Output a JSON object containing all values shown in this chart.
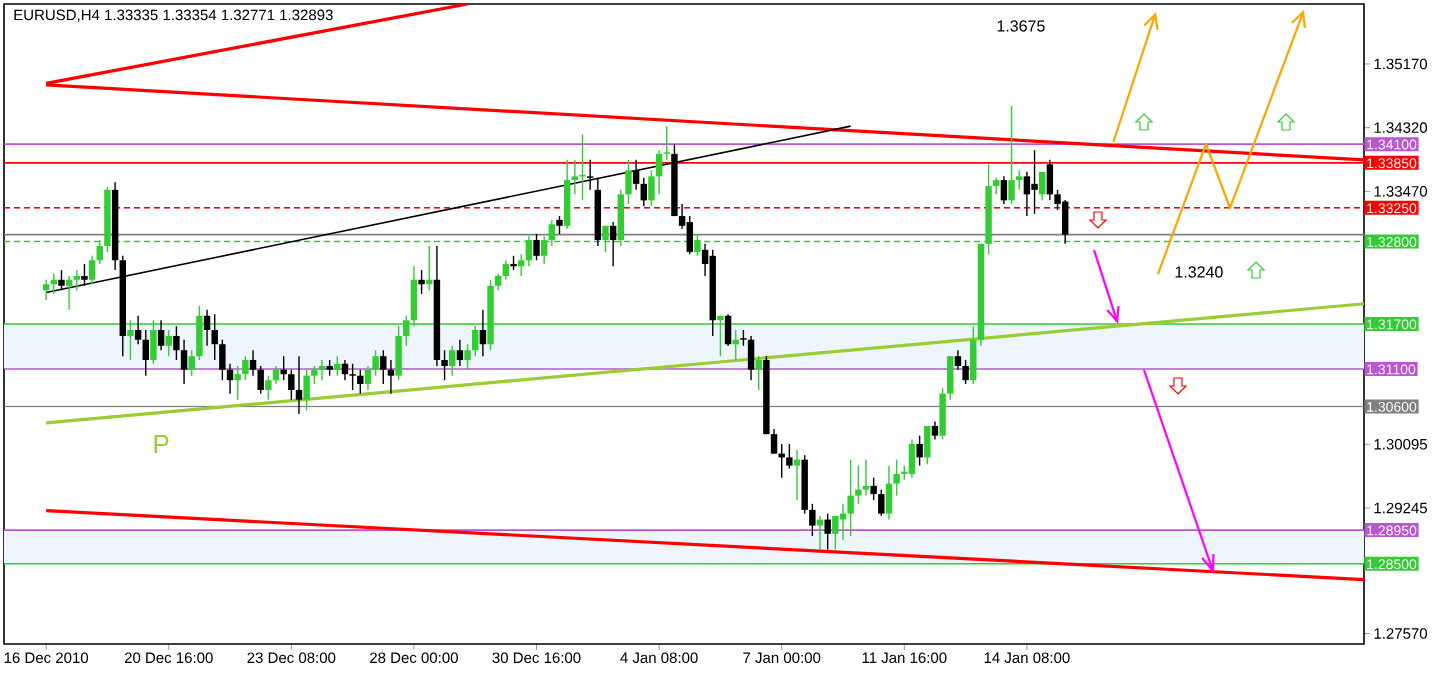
{
  "chart_data": {
    "type": "candlestick",
    "title": "EURUSD,H4  1.33335 1.33354 1.32771 1.32893",
    "categories": [
      "16 Dec 2010",
      null,
      null,
      null,
      null,
      null,
      null,
      null,
      null,
      null,
      null,
      null,
      null,
      null,
      null,
      null,
      "20 Dec 16:00",
      null,
      null,
      null,
      null,
      null,
      null,
      null,
      null,
      null,
      null,
      null,
      null,
      null,
      null,
      null,
      "23 Dec 08:00",
      null,
      null,
      null,
      null,
      null,
      null,
      null,
      null,
      null,
      null,
      null,
      null,
      null,
      null,
      null,
      "28 Dec 00:00",
      null,
      null,
      null,
      null,
      null,
      null,
      null,
      null,
      null,
      null,
      null,
      null,
      null,
      null,
      null,
      "30 Dec 16:00",
      null,
      null,
      null,
      null,
      null,
      null,
      null,
      null,
      null,
      null,
      null,
      null,
      null,
      null,
      null,
      "4 Jan 08:00",
      null,
      null,
      null,
      null,
      null,
      null,
      null,
      null,
      null,
      null,
      null,
      null,
      null,
      null,
      null,
      "7 Jan 00:00",
      null,
      null,
      null,
      null,
      null,
      null,
      null,
      null,
      null,
      null,
      null,
      null,
      null,
      null,
      null,
      "11 Jan 16:00",
      null,
      null,
      null,
      null,
      null,
      null,
      null,
      null,
      null,
      null,
      null,
      null,
      null,
      null,
      null,
      "14 Jan 08:00",
      null,
      null,
      null,
      null,
      null,
      null,
      null,
      null,
      null,
      null,
      null,
      null,
      null,
      null,
      null,
      null,
      null,
      null,
      null,
      null,
      null,
      null,
      null,
      null,
      null,
      null,
      null,
      null,
      null,
      null,
      null,
      null,
      null,
      null,
      null,
      null,
      null,
      null,
      null,
      null,
      null,
      null,
      null,
      null
    ],
    "ohlc": [
      [
        1.3215,
        1.3229,
        1.3202,
        1.3223
      ],
      [
        1.3223,
        1.3237,
        1.321,
        1.3229
      ],
      [
        1.3229,
        1.3242,
        1.3215,
        1.3221
      ],
      [
        1.3221,
        1.3234,
        1.3189,
        1.3229
      ],
      [
        1.3229,
        1.3242,
        1.3215,
        1.3234
      ],
      [
        1.3234,
        1.325,
        1.3221,
        1.3229
      ],
      [
        1.3229,
        1.3261,
        1.3223,
        1.3255
      ],
      [
        1.3255,
        1.3282,
        1.325,
        1.3274
      ],
      [
        1.3274,
        1.3353,
        1.3266,
        1.3349
      ],
      [
        1.3349,
        1.3359,
        1.3242,
        1.3255
      ],
      [
        1.3255,
        1.3261,
        1.3127,
        1.3154
      ],
      [
        1.3154,
        1.3175,
        1.3122,
        1.3162
      ],
      [
        1.3162,
        1.3181,
        1.3143,
        1.3149
      ],
      [
        1.3149,
        1.3162,
        1.3101,
        1.3122
      ],
      [
        1.3122,
        1.3175,
        1.3117,
        1.3162
      ],
      [
        1.3162,
        1.3175,
        1.3135,
        1.3141
      ],
      [
        1.3141,
        1.3162,
        1.3127,
        1.3154
      ],
      [
        1.3154,
        1.3167,
        1.3122,
        1.3135
      ],
      [
        1.3135,
        1.3149,
        1.309,
        1.3109
      ],
      [
        1.3109,
        1.3135,
        1.3101,
        1.3127
      ],
      [
        1.3127,
        1.3194,
        1.3122,
        1.3181
      ],
      [
        1.3181,
        1.3189,
        1.3141,
        1.3162
      ],
      [
        1.3162,
        1.3183,
        1.3122,
        1.3143
      ],
      [
        1.3143,
        1.3149,
        1.3095,
        1.3109
      ],
      [
        1.3109,
        1.3117,
        1.3077,
        1.3095
      ],
      [
        1.3095,
        1.3114,
        1.3069,
        1.3103
      ],
      [
        1.3103,
        1.3127,
        1.3095,
        1.3122
      ],
      [
        1.3122,
        1.3135,
        1.3101,
        1.3109
      ],
      [
        1.3109,
        1.3114,
        1.3077,
        1.3082
      ],
      [
        1.3082,
        1.3101,
        1.3069,
        1.3095
      ],
      [
        1.3095,
        1.3114,
        1.309,
        1.3109
      ],
      [
        1.3109,
        1.3127,
        1.3095,
        1.3103
      ],
      [
        1.3103,
        1.3109,
        1.3069,
        1.3082
      ],
      [
        1.3082,
        1.3127,
        1.305,
        1.3069
      ],
      [
        1.3069,
        1.3109,
        1.3055,
        1.3101
      ],
      [
        1.3101,
        1.3114,
        1.309,
        1.3109
      ],
      [
        1.3109,
        1.3122,
        1.3095,
        1.3114
      ],
      [
        1.3114,
        1.3122,
        1.3101,
        1.3109
      ],
      [
        1.3109,
        1.3127,
        1.3101,
        1.3117
      ],
      [
        1.3117,
        1.3122,
        1.3095,
        1.3103
      ],
      [
        1.3103,
        1.3117,
        1.3082,
        1.3101
      ],
      [
        1.3101,
        1.3109,
        1.3077,
        1.309
      ],
      [
        1.309,
        1.3114,
        1.3082,
        1.3109
      ],
      [
        1.3109,
        1.3135,
        1.3101,
        1.3127
      ],
      [
        1.3127,
        1.3135,
        1.309,
        1.3109
      ],
      [
        1.3109,
        1.3122,
        1.3077,
        1.3101
      ],
      [
        1.3101,
        1.3167,
        1.3095,
        1.3154
      ],
      [
        1.3154,
        1.3181,
        1.3141,
        1.3175
      ],
      [
        1.3175,
        1.3247,
        1.3167,
        1.3229
      ],
      [
        1.3229,
        1.3242,
        1.321,
        1.3223
      ],
      [
        1.3223,
        1.3274,
        1.3215,
        1.3229
      ],
      [
        1.3229,
        1.3274,
        1.3114,
        1.3122
      ],
      [
        1.3122,
        1.3135,
        1.3095,
        1.3114
      ],
      [
        1.3114,
        1.3141,
        1.3101,
        1.3135
      ],
      [
        1.3135,
        1.3149,
        1.3114,
        1.3122
      ],
      [
        1.3122,
        1.3143,
        1.3109,
        1.3135
      ],
      [
        1.3135,
        1.3167,
        1.3127,
        1.3162
      ],
      [
        1.3162,
        1.3189,
        1.3127,
        1.3143
      ],
      [
        1.3143,
        1.3229,
        1.3135,
        1.3221
      ],
      [
        1.3221,
        1.3237,
        1.3215,
        1.3234
      ],
      [
        1.3234,
        1.3255,
        1.3229,
        1.325
      ],
      [
        1.325,
        1.3261,
        1.3242,
        1.3247
      ],
      [
        1.3247,
        1.3263,
        1.3234,
        1.3255
      ],
      [
        1.3255,
        1.3287,
        1.3247,
        1.3282
      ],
      [
        1.3282,
        1.329,
        1.3255,
        1.3261
      ],
      [
        1.3261,
        1.3287,
        1.325,
        1.3282
      ],
      [
        1.3282,
        1.3309,
        1.3274,
        1.3303
      ],
      [
        1.3309,
        1.3314,
        1.329,
        1.3301
      ],
      [
        1.3301,
        1.3389,
        1.3297,
        1.3362
      ],
      [
        1.3362,
        1.3389,
        1.3343,
        1.3367
      ],
      [
        1.3367,
        1.3423,
        1.3335,
        1.3369
      ],
      [
        1.3367,
        1.3389,
        1.3349,
        1.3365
      ],
      [
        1.3349,
        1.3365,
        1.3274,
        1.3282
      ],
      [
        1.3282,
        1.3301,
        1.3266,
        1.3301
      ],
      [
        1.3301,
        1.3306,
        1.3247,
        1.3282
      ],
      [
        1.3282,
        1.3349,
        1.3274,
        1.3343
      ],
      [
        1.3343,
        1.3389,
        1.333,
        1.3375
      ],
      [
        1.3375,
        1.3389,
        1.3349,
        1.3357
      ],
      [
        1.3357,
        1.3365,
        1.3327,
        1.3335
      ],
      [
        1.3335,
        1.3375,
        1.3327,
        1.3367
      ],
      [
        1.3367,
        1.3402,
        1.3343,
        1.3397
      ],
      [
        1.3397,
        1.3434,
        1.3389,
        1.3399
      ],
      [
        1.3397,
        1.341,
        1.3314,
        1.3314
      ],
      [
        1.3314,
        1.333,
        1.3297,
        1.3301
      ],
      [
        1.3306,
        1.3314,
        1.3263,
        1.3266
      ],
      [
        1.3266,
        1.329,
        1.3261,
        1.3282
      ],
      [
        1.3269,
        1.3277,
        1.3234,
        1.325
      ],
      [
        1.3261,
        1.3269,
        1.3154,
        1.3175
      ],
      [
        1.3175,
        1.3181,
        1.3127,
        1.3181
      ],
      [
        1.3181,
        1.3183,
        1.3141,
        1.3143
      ],
      [
        1.3143,
        1.3162,
        1.3122,
        1.3149
      ],
      [
        1.3151,
        1.3162,
        1.3141,
        1.3149
      ],
      [
        1.3149,
        1.3154,
        1.3095,
        1.3109
      ],
      [
        1.3109,
        1.3127,
        1.3082,
        1.3122
      ],
      [
        1.3122,
        1.3127,
        1.3023,
        1.3023
      ],
      [
        1.3023,
        1.303,
        1.2997,
        1.2997
      ],
      [
        1.2997,
        1.301,
        1.2965,
        1.2992
      ],
      [
        1.2992,
        1.301,
        1.2977,
        1.2981
      ],
      [
        1.2981,
        1.3002,
        1.2935,
        1.2989
      ],
      [
        1.2989,
        1.2995,
        1.2917,
        1.2922
      ],
      [
        1.2922,
        1.293,
        1.2887,
        1.2901
      ],
      [
        1.2901,
        1.2914,
        1.2869,
        1.2909
      ],
      [
        1.2909,
        1.2917,
        1.2869,
        1.289
      ],
      [
        1.289,
        1.2914,
        1.2869,
        1.2914
      ],
      [
        1.2909,
        1.293,
        1.2882,
        1.2917
      ],
      [
        1.2917,
        1.2989,
        1.2887,
        1.2941
      ],
      [
        1.2941,
        1.2981,
        1.293,
        1.2949
      ],
      [
        1.2949,
        1.2989,
        1.2941,
        1.2954
      ],
      [
        1.2954,
        1.2965,
        1.2935,
        1.2943
      ],
      [
        1.2943,
        1.2949,
        1.2914,
        1.2917
      ],
      [
        1.2917,
        1.2981,
        1.2909,
        1.2957
      ],
      [
        1.2957,
        1.2989,
        1.2941,
        1.297
      ],
      [
        1.297,
        1.2981,
        1.2962,
        1.2973
      ],
      [
        1.297,
        1.3016,
        1.2965,
        1.301
      ],
      [
        1.301,
        1.3021,
        1.2981,
        1.2992
      ],
      [
        1.2992,
        1.3034,
        1.2983,
        1.3034
      ],
      [
        1.3034,
        1.304,
        1.3016,
        1.3021
      ],
      [
        1.3021,
        1.3085,
        1.3016,
        1.3077
      ],
      [
        1.3077,
        1.3127,
        1.3069,
        1.3127
      ],
      [
        1.3127,
        1.3135,
        1.3109,
        1.3114
      ],
      [
        1.3114,
        1.3122,
        1.309,
        1.3095
      ],
      [
        1.3095,
        1.3167,
        1.309,
        1.3149
      ],
      [
        1.3149,
        1.3277,
        1.3141,
        1.3277
      ],
      [
        1.3277,
        1.3383,
        1.3263,
        1.3354
      ],
      [
        1.3354,
        1.3365,
        1.3343,
        1.3362
      ],
      [
        1.3362,
        1.3367,
        1.333,
        1.3335
      ],
      [
        1.3335,
        1.3461,
        1.333,
        1.3362
      ],
      [
        1.3362,
        1.3375,
        1.3349,
        1.3367
      ],
      [
        1.3367,
        1.3373,
        1.3314,
        1.3343
      ],
      [
        1.3357,
        1.3402,
        1.3317,
        1.3349
      ],
      [
        1.3343,
        1.3373,
        1.3335,
        1.3373
      ],
      [
        1.3383,
        1.3389,
        1.3335,
        1.3343
      ],
      [
        1.3343,
        1.3349,
        1.3322,
        1.333
      ],
      [
        1.33335,
        1.33354,
        1.32771,
        1.32893
      ],
      null,
      null,
      null,
      null,
      null,
      null,
      null,
      null,
      null,
      null,
      null,
      null,
      null,
      null,
      null,
      null,
      null,
      null,
      null,
      null,
      null,
      null,
      null,
      null,
      null,
      null,
      null,
      null,
      null,
      null,
      null,
      null,
      null,
      null,
      null,
      null,
      null,
      null,
      null
    ],
    "series": [
      {
        "type": "line",
        "values": [
          1.3491,
          null,
          null,
          null,
          null,
          null,
          null,
          null,
          null,
          null,
          null,
          null,
          null,
          null,
          null,
          null,
          null,
          null,
          null,
          null,
          null,
          null,
          null,
          null,
          null,
          null,
          null,
          null,
          null,
          null,
          null,
          null,
          null,
          null,
          null,
          null,
          null,
          null,
          null,
          null,
          null,
          null,
          null,
          null,
          null,
          null,
          null,
          null,
          null,
          null,
          null,
          null,
          null,
          null,
          null,
          1.3597,
          null,
          null,
          null,
          null,
          null,
          null,
          null,
          null,
          null,
          null,
          null,
          null,
          null,
          null,
          null,
          null,
          null,
          null,
          null,
          null,
          null,
          null,
          null,
          null,
          null,
          null,
          null,
          null,
          null,
          null,
          null,
          null,
          null,
          null,
          null,
          null,
          null,
          null,
          null,
          null,
          null,
          null,
          null,
          null,
          null,
          null,
          null,
          null,
          null,
          null,
          null,
          null,
          null,
          null,
          null,
          null,
          null,
          null,
          null,
          null,
          null,
          null,
          null,
          null,
          null,
          null,
          null,
          null,
          null,
          null,
          null,
          null,
          null,
          null,
          null,
          null,
          null,
          null,
          null,
          null,
          null,
          null,
          null,
          null,
          null,
          null,
          null,
          null,
          null,
          null,
          null,
          null,
          null,
          null,
          null,
          null,
          null,
          null,
          null,
          null,
          null,
          null,
          null,
          null,
          null,
          null,
          null,
          null,
          null,
          null,
          null,
          null,
          null,
          null,
          null,
          null,
          null
        ],
        "color": "#ff0000"
      },
      {
        "type": "line",
        "values": [
          1.3489,
          null,
          null,
          null,
          null,
          null,
          null,
          null,
          null,
          null,
          null,
          null,
          null,
          null,
          null,
          null,
          null,
          null,
          null,
          null,
          null,
          null,
          null,
          null,
          null,
          null,
          null,
          null,
          null,
          null,
          null,
          null,
          null,
          null,
          null,
          null,
          null,
          null,
          null,
          null,
          null,
          null,
          null,
          null,
          null,
          null,
          null,
          null,
          null,
          null,
          null,
          null,
          null,
          null,
          null,
          null,
          null,
          null,
          null,
          null,
          null,
          null,
          null,
          null,
          null,
          null,
          null,
          null,
          null,
          null,
          null,
          null,
          null,
          null,
          null,
          null,
          null,
          null,
          null,
          null,
          null,
          null,
          null,
          null,
          null,
          null,
          null,
          null,
          null,
          null,
          null,
          null,
          null,
          null,
          null,
          null,
          null,
          null,
          null,
          null,
          null,
          null,
          null,
          null,
          null,
          null,
          null,
          null,
          null,
          null,
          null,
          null,
          null,
          null,
          null,
          null,
          null,
          null,
          null,
          null,
          null,
          null,
          null,
          null,
          null,
          null,
          null,
          null,
          null,
          null,
          null,
          null,
          null,
          null,
          null,
          null,
          null,
          null,
          null,
          null,
          null,
          null,
          null,
          null,
          null,
          null,
          null,
          null,
          null,
          null,
          null,
          null,
          null,
          null,
          null,
          null,
          null,
          null,
          null,
          null,
          null,
          null,
          null,
          null,
          null,
          null,
          null,
          null,
          null,
          null,
          null,
          null,
          1.3389
        ],
        "color": "#ff0000"
      },
      {
        "type": "line",
        "values": [
          1.3212,
          null,
          null,
          null,
          null,
          null,
          null,
          null,
          null,
          null,
          null,
          null,
          null,
          null,
          null,
          null,
          null,
          null,
          null,
          null,
          null,
          null,
          null,
          null,
          null,
          null,
          null,
          null,
          null,
          null,
          null,
          null,
          null,
          null,
          null,
          null,
          null,
          null,
          null,
          null,
          null,
          null,
          null,
          null,
          null,
          null,
          null,
          null,
          null,
          null,
          null,
          null,
          null,
          null,
          null,
          null,
          null,
          null,
          null,
          null,
          null,
          null,
          null,
          null,
          null,
          null,
          null,
          null,
          null,
          null,
          null,
          null,
          null,
          null,
          null,
          null,
          null,
          null,
          null,
          null,
          null,
          null,
          null,
          null,
          null,
          null,
          null,
          null,
          null,
          null,
          null,
          null,
          null,
          null,
          null,
          null,
          null,
          null,
          null,
          null,
          null,
          null,
          null,
          null,
          null,
          1.3434,
          null,
          null,
          null,
          null,
          null,
          null,
          null,
          null,
          null,
          null,
          null,
          null,
          null,
          null,
          null,
          null,
          null,
          null,
          null,
          null,
          null,
          null,
          null,
          null,
          null,
          null,
          null,
          null,
          null,
          null,
          null,
          null,
          null,
          null,
          null,
          null,
          null,
          null,
          null,
          null,
          null,
          null,
          null,
          null,
          null,
          null,
          null,
          null,
          null,
          null,
          null,
          null,
          null,
          null,
          null,
          null,
          null,
          null,
          null,
          null,
          null,
          null,
          null,
          null,
          null,
          null,
          null
        ],
        "color": "#000000"
      },
      {
        "type": "line",
        "values": [
          1.3038,
          null,
          null,
          null,
          null,
          null,
          null,
          null,
          null,
          null,
          null,
          null,
          null,
          null,
          null,
          null,
          null,
          null,
          null,
          null,
          null,
          null,
          null,
          null,
          null,
          null,
          null,
          null,
          null,
          null,
          null,
          null,
          null,
          null,
          null,
          null,
          null,
          null,
          null,
          null,
          null,
          null,
          null,
          null,
          null,
          null,
          null,
          null,
          null,
          null,
          null,
          null,
          null,
          null,
          null,
          null,
          null,
          null,
          null,
          null,
          null,
          null,
          null,
          null,
          null,
          null,
          null,
          null,
          null,
          null,
          null,
          null,
          null,
          null,
          null,
          null,
          null,
          null,
          null,
          null,
          null,
          null,
          null,
          null,
          null,
          null,
          null,
          null,
          null,
          null,
          null,
          null,
          null,
          null,
          null,
          null,
          null,
          null,
          null,
          null,
          null,
          null,
          null,
          null,
          null,
          null,
          null,
          null,
          null,
          null,
          null,
          null,
          null,
          null,
          null,
          null,
          null,
          null,
          null,
          null,
          null,
          null,
          null,
          null,
          null,
          null,
          null,
          null,
          null,
          null,
          null,
          null,
          null,
          null,
          null,
          null,
          null,
          null,
          null,
          null,
          null,
          null,
          null,
          null,
          null,
          null,
          null,
          null,
          null,
          null,
          null,
          null,
          null,
          null,
          null,
          null,
          null,
          null,
          null,
          null,
          null,
          null,
          null,
          null,
          null,
          null,
          null,
          null,
          null,
          null,
          null,
          null,
          1.3197
        ],
        "color": "#9acd32"
      },
      {
        "type": "line",
        "values": [
          1.2921,
          null,
          null,
          null,
          null,
          null,
          null,
          null,
          null,
          null,
          null,
          null,
          null,
          null,
          null,
          null,
          null,
          null,
          null,
          null,
          null,
          null,
          null,
          null,
          null,
          null,
          null,
          null,
          null,
          null,
          null,
          null,
          null,
          null,
          null,
          null,
          null,
          null,
          null,
          null,
          null,
          null,
          null,
          null,
          null,
          null,
          null,
          null,
          null,
          null,
          null,
          null,
          null,
          null,
          null,
          null,
          null,
          null,
          null,
          null,
          null,
          null,
          null,
          null,
          null,
          null,
          null,
          null,
          null,
          null,
          null,
          null,
          null,
          null,
          null,
          null,
          null,
          null,
          null,
          null,
          null,
          null,
          null,
          null,
          null,
          null,
          null,
          null,
          null,
          null,
          null,
          null,
          null,
          null,
          null,
          null,
          null,
          null,
          null,
          null,
          null,
          null,
          null,
          null,
          null,
          null,
          null,
          null,
          null,
          null,
          null,
          null,
          null,
          null,
          null,
          null,
          null,
          null,
          null,
          null,
          null,
          null,
          null,
          null,
          null,
          null,
          null,
          null,
          null,
          null,
          null,
          null,
          null,
          null,
          null,
          null,
          null,
          null,
          null,
          null,
          null,
          null,
          null,
          null,
          null,
          null,
          null,
          null,
          null,
          null,
          null,
          null,
          null,
          null,
          null,
          null,
          null,
          null,
          null,
          null,
          null,
          null,
          null,
          null,
          null,
          null,
          null,
          null,
          null,
          null,
          null,
          null,
          1.2829
        ],
        "color": "#ff0000"
      }
    ],
    "ylim": [
      1.2743,
      1.3597
    ],
    "yticks": [
      {
        "value": 1.3517,
        "label": "1.35170"
      },
      {
        "value": 1.3432,
        "label": "1.34320"
      },
      {
        "value": 1.3347,
        "label": "1.33470"
      },
      {
        "value": 1.30095,
        "label": "1.30095"
      },
      {
        "value": 1.29245,
        "label": "1.29245"
      },
      {
        "value": 1.2757,
        "label": "1.27570"
      }
    ],
    "ref_lines": [
      {
        "axis": "y",
        "value": 1.341,
        "label": "1.34100",
        "color": "#ba55d3"
      },
      {
        "axis": "y",
        "value": 1.3385,
        "label": "1.33850",
        "color": "#ff0000"
      },
      {
        "axis": "y",
        "value": 1.3325,
        "label": "1.33250",
        "color": "#ff0000",
        "line_style": "dashed"
      },
      {
        "axis": "y",
        "value": 1.32893,
        "color": "#808080"
      },
      {
        "axis": "y",
        "value": 1.328,
        "label": "1.32800",
        "color": "#32cd32",
        "line_style": "dashed"
      },
      {
        "axis": "y",
        "value": 1.317,
        "label": "1.31700",
        "color": "#32cd32"
      },
      {
        "axis": "y",
        "value": 1.311,
        "label": "1.31100",
        "color": "#ba55d3"
      },
      {
        "axis": "y",
        "value": 1.306,
        "label": "1.30600",
        "color": "#808080"
      },
      {
        "axis": "y",
        "value": 1.2895,
        "label": "1.28950",
        "color": "#ba55d3"
      },
      {
        "axis": "y",
        "value": 1.285,
        "label": "1.28500",
        "color": "#32cd32"
      }
    ],
    "bands": [
      {
        "axis": "y",
        "from": 1.311,
        "to": 1.317,
        "color": "#eef5fc"
      },
      {
        "axis": "y",
        "from": 1.285,
        "to": 1.2895,
        "color": "#eef5fc"
      }
    ],
    "annotations": [
      "1.3675",
      "1.3240",
      "P"
    ]
  }
}
